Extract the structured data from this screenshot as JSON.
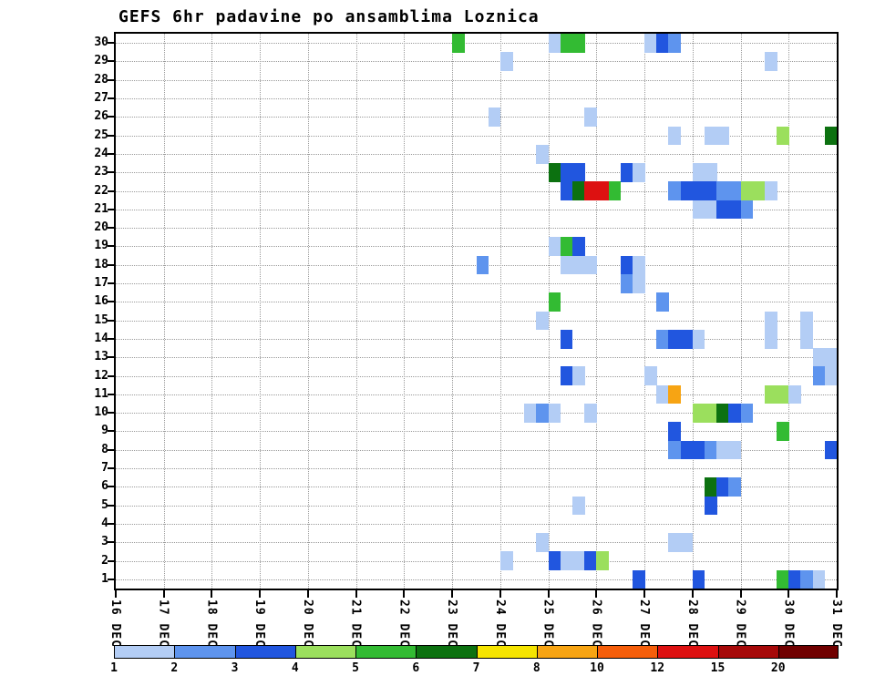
{
  "title": "GEFS 6hr padavine po ansamblima Loznica",
  "chart_data": {
    "type": "heatmap",
    "title": "GEFS 6hr padavine po ansamblima Loznica",
    "x_labels": [
      "16 DEC",
      "17 DEC",
      "18 DEC",
      "19 DEC",
      "20 DEC",
      "21 DEC",
      "22 DEC",
      "23 DEC",
      "24 DEC",
      "25 DEC",
      "26 DEC",
      "27 DEC",
      "28 DEC",
      "29 DEC",
      "30 DEC",
      "31 DEC"
    ],
    "steps_per_day": 4,
    "y_labels": [
      "30",
      "29",
      "28",
      "27",
      "26",
      "25",
      "24",
      "23",
      "22",
      "21",
      "20",
      "19",
      "18",
      "17",
      "16",
      "15",
      "14",
      "13",
      "12",
      "11",
      "10",
      "9",
      "8",
      "7",
      "6",
      "5",
      "4",
      "3",
      "2",
      "1"
    ],
    "legend": {
      "labels": [
        "1",
        "2",
        "3",
        "4",
        "5",
        "6",
        "7",
        "8",
        "10",
        "12",
        "15",
        "20"
      ],
      "colors": [
        "#b3cdf5",
        "#5e94ee",
        "#2156df",
        "#9bdf5d",
        "#33bb33",
        "#0c7110",
        "#f5e400",
        "#f7a413",
        "#f55e0a",
        "#dd1111",
        "#a60909",
        "#700000"
      ],
      "position": "bottom"
    },
    "encoding": "cells = [six-hour step from 16 DEC 00h, ensemble member (row), legend color index]",
    "cells": [
      [
        28,
        30,
        4
      ],
      [
        36,
        30,
        0
      ],
      [
        37,
        30,
        4
      ],
      [
        38,
        30,
        4
      ],
      [
        44,
        30,
        0
      ],
      [
        45,
        30,
        2
      ],
      [
        46,
        30,
        1
      ],
      [
        32,
        29,
        0
      ],
      [
        54,
        29,
        0
      ],
      [
        31,
        26,
        0
      ],
      [
        39,
        26,
        0
      ],
      [
        46,
        25,
        0
      ],
      [
        49,
        25,
        0
      ],
      [
        50,
        25,
        0
      ],
      [
        55,
        25,
        3
      ],
      [
        59,
        25,
        5
      ],
      [
        35,
        24,
        0
      ],
      [
        36,
        23,
        5
      ],
      [
        37,
        23,
        2
      ],
      [
        38,
        23,
        2
      ],
      [
        42,
        23,
        2
      ],
      [
        43,
        23,
        0
      ],
      [
        48,
        23,
        0
      ],
      [
        49,
        23,
        0
      ],
      [
        37,
        22,
        2
      ],
      [
        38,
        22,
        5
      ],
      [
        39,
        22,
        9
      ],
      [
        40,
        22,
        9
      ],
      [
        41,
        22,
        4
      ],
      [
        46,
        22,
        1
      ],
      [
        47,
        22,
        2
      ],
      [
        48,
        22,
        2
      ],
      [
        49,
        22,
        2
      ],
      [
        50,
        22,
        1
      ],
      [
        51,
        22,
        1
      ],
      [
        52,
        22,
        3
      ],
      [
        53,
        22,
        3
      ],
      [
        54,
        22,
        0
      ],
      [
        48,
        21,
        0
      ],
      [
        49,
        21,
        0
      ],
      [
        50,
        21,
        2
      ],
      [
        51,
        21,
        2
      ],
      [
        52,
        21,
        1
      ],
      [
        36,
        19,
        0
      ],
      [
        37,
        19,
        4
      ],
      [
        38,
        19,
        2
      ],
      [
        30,
        18,
        1
      ],
      [
        37,
        18,
        0
      ],
      [
        38,
        18,
        0
      ],
      [
        39,
        18,
        0
      ],
      [
        42,
        18,
        2
      ],
      [
        43,
        18,
        0
      ],
      [
        42,
        17,
        1
      ],
      [
        43,
        17,
        0
      ],
      [
        36,
        16,
        4
      ],
      [
        45,
        16,
        1
      ],
      [
        35,
        15,
        0
      ],
      [
        54,
        15,
        0
      ],
      [
        57,
        15,
        0
      ],
      [
        37,
        14,
        2
      ],
      [
        45,
        14,
        1
      ],
      [
        46,
        14,
        2
      ],
      [
        47,
        14,
        2
      ],
      [
        48,
        14,
        0
      ],
      [
        54,
        14,
        0
      ],
      [
        57,
        14,
        0
      ],
      [
        58,
        13,
        0
      ],
      [
        59,
        13,
        0
      ],
      [
        37,
        12,
        2
      ],
      [
        38,
        12,
        0
      ],
      [
        44,
        12,
        0
      ],
      [
        58,
        12,
        1
      ],
      [
        59,
        12,
        0
      ],
      [
        45,
        11,
        0
      ],
      [
        46,
        11,
        7
      ],
      [
        54,
        11,
        3
      ],
      [
        55,
        11,
        3
      ],
      [
        56,
        11,
        0
      ],
      [
        34,
        10,
        0
      ],
      [
        35,
        10,
        1
      ],
      [
        36,
        10,
        0
      ],
      [
        39,
        10,
        0
      ],
      [
        48,
        10,
        3
      ],
      [
        49,
        10,
        3
      ],
      [
        50,
        10,
        5
      ],
      [
        51,
        10,
        2
      ],
      [
        52,
        10,
        1
      ],
      [
        46,
        9,
        2
      ],
      [
        55,
        9,
        4
      ],
      [
        46,
        8,
        1
      ],
      [
        47,
        8,
        2
      ],
      [
        48,
        8,
        2
      ],
      [
        49,
        8,
        1
      ],
      [
        50,
        8,
        0
      ],
      [
        51,
        8,
        0
      ],
      [
        59,
        8,
        2
      ],
      [
        49,
        6,
        5
      ],
      [
        50,
        6,
        2
      ],
      [
        51,
        6,
        1
      ],
      [
        38,
        5,
        0
      ],
      [
        49,
        5,
        2
      ],
      [
        35,
        3,
        0
      ],
      [
        46,
        3,
        0
      ],
      [
        47,
        3,
        0
      ],
      [
        32,
        2,
        0
      ],
      [
        36,
        2,
        2
      ],
      [
        37,
        2,
        0
      ],
      [
        38,
        2,
        0
      ],
      [
        39,
        2,
        2
      ],
      [
        40,
        2,
        3
      ],
      [
        43,
        1,
        2
      ],
      [
        48,
        1,
        2
      ],
      [
        55,
        1,
        4
      ],
      [
        56,
        1,
        2
      ],
      [
        57,
        1,
        1
      ],
      [
        58,
        1,
        0
      ]
    ]
  }
}
